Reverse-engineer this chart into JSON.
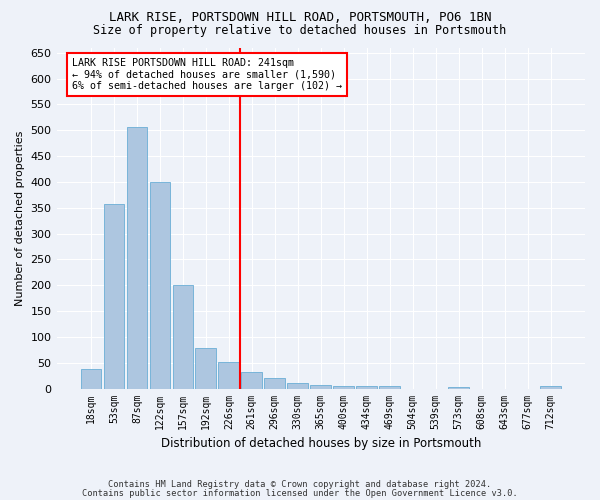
{
  "title_line1": "LARK RISE, PORTSDOWN HILL ROAD, PORTSMOUTH, PO6 1BN",
  "title_line2": "Size of property relative to detached houses in Portsmouth",
  "xlabel": "Distribution of detached houses by size in Portsmouth",
  "ylabel": "Number of detached properties",
  "categories": [
    "18sqm",
    "53sqm",
    "87sqm",
    "122sqm",
    "157sqm",
    "192sqm",
    "226sqm",
    "261sqm",
    "296sqm",
    "330sqm",
    "365sqm",
    "400sqm",
    "434sqm",
    "469sqm",
    "504sqm",
    "539sqm",
    "573sqm",
    "608sqm",
    "643sqm",
    "677sqm",
    "712sqm"
  ],
  "values": [
    37,
    357,
    507,
    400,
    200,
    78,
    52,
    33,
    20,
    10,
    7,
    5,
    5,
    4,
    0,
    0,
    3,
    0,
    0,
    0,
    4
  ],
  "bar_color": "#adc6e0",
  "bar_edge_color": "#6aaed6",
  "vline_x": 6.5,
  "annotation_text": "LARK RISE PORTSDOWN HILL ROAD: 241sqm\n← 94% of detached houses are smaller (1,590)\n6% of semi-detached houses are larger (102) →",
  "annotation_box_color": "white",
  "annotation_box_edge": "red",
  "vline_color": "red",
  "ylim": [
    0,
    660
  ],
  "yticks": [
    0,
    50,
    100,
    150,
    200,
    250,
    300,
    350,
    400,
    450,
    500,
    550,
    600,
    650
  ],
  "footer_line1": "Contains HM Land Registry data © Crown copyright and database right 2024.",
  "footer_line2": "Contains public sector information licensed under the Open Government Licence v3.0.",
  "bg_color": "#eef2f9",
  "axes_bg_color": "#eef2f9"
}
